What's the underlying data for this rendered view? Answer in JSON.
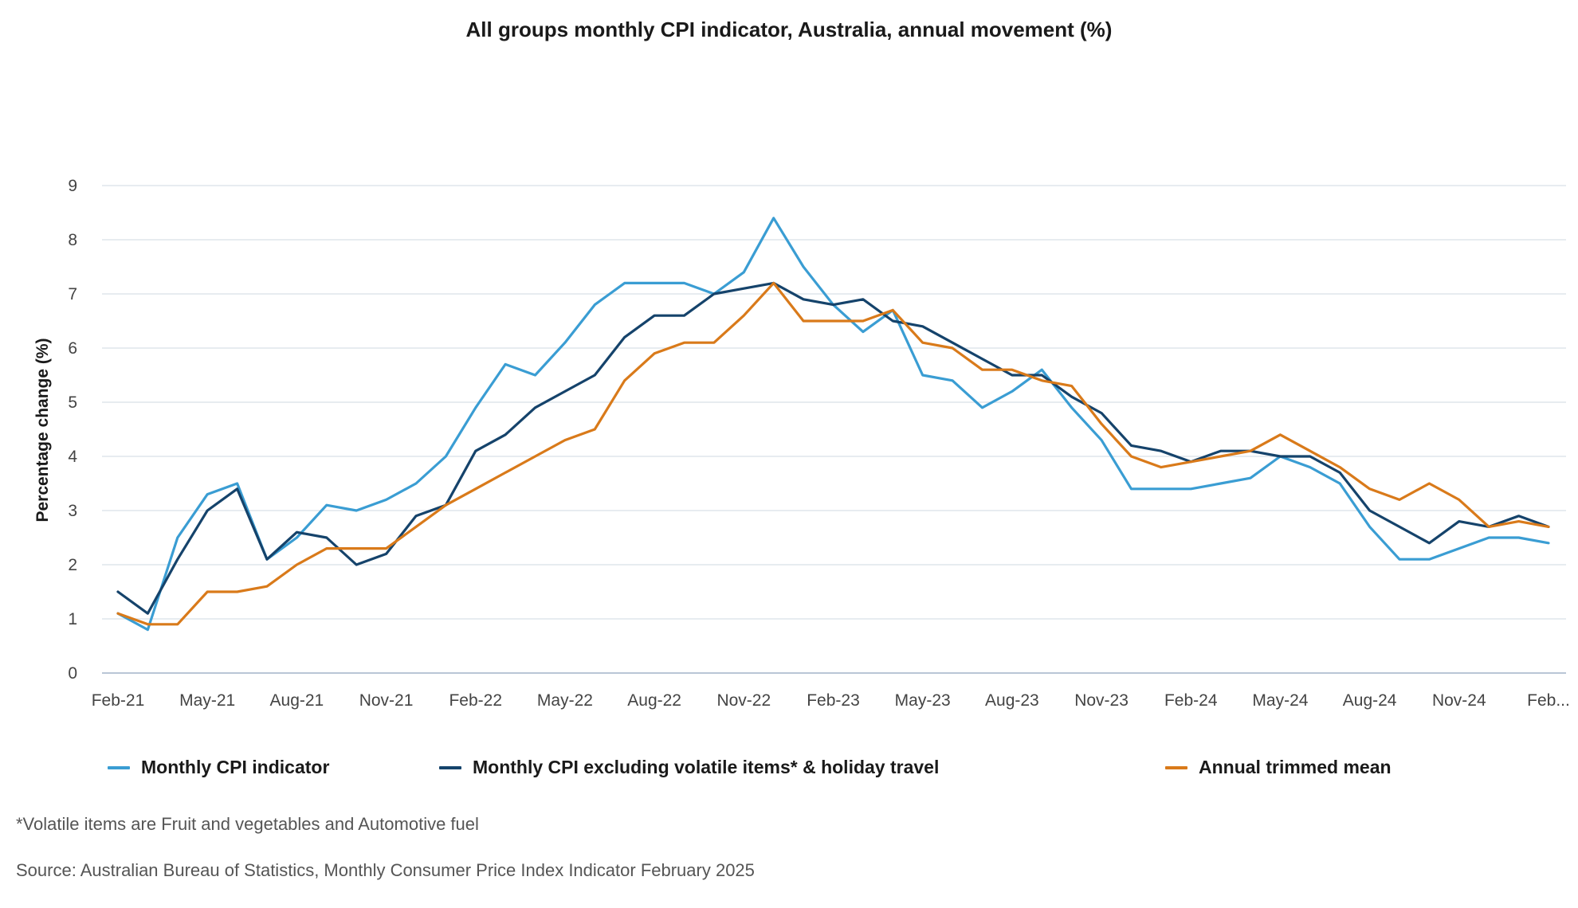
{
  "chart_data": {
    "type": "line",
    "title": "All groups monthly CPI indicator, Australia, annual movement (%)",
    "ylabel": "Percentage change (%)",
    "xlabel": "",
    "ylim": [
      0,
      9
    ],
    "yticks": [
      0,
      1,
      2,
      3,
      4,
      5,
      6,
      7,
      8,
      9
    ],
    "grid": "horizontal",
    "legend_position": "bottom",
    "x": [
      "Feb-21",
      "Mar-21",
      "Apr-21",
      "May-21",
      "Jun-21",
      "Jul-21",
      "Aug-21",
      "Sep-21",
      "Oct-21",
      "Nov-21",
      "Dec-21",
      "Jan-22",
      "Feb-22",
      "Mar-22",
      "Apr-22",
      "May-22",
      "Jun-22",
      "Jul-22",
      "Aug-22",
      "Sep-22",
      "Oct-22",
      "Nov-22",
      "Dec-22",
      "Jan-23",
      "Feb-23",
      "Mar-23",
      "Apr-23",
      "May-23",
      "Jun-23",
      "Jul-23",
      "Aug-23",
      "Sep-23",
      "Oct-23",
      "Nov-23",
      "Dec-23",
      "Jan-24",
      "Feb-24",
      "Mar-24",
      "Apr-24",
      "May-24",
      "Jun-24",
      "Jul-24",
      "Aug-24",
      "Sep-24",
      "Oct-24",
      "Nov-24",
      "Dec-24",
      "Jan-25",
      "Feb-25"
    ],
    "tick_labels": [
      "Feb-21",
      "May-21",
      "Aug-21",
      "Nov-21",
      "Feb-22",
      "May-22",
      "Aug-22",
      "Nov-22",
      "Feb-23",
      "May-23",
      "Aug-23",
      "Nov-23",
      "Feb-24",
      "May-24",
      "Aug-24",
      "Nov-24",
      "Feb..."
    ],
    "tick_every": 3,
    "series": [
      {
        "name": "Monthly CPI indicator",
        "color": "#3a9dd3",
        "values": [
          1.1,
          0.8,
          2.5,
          3.3,
          3.5,
          2.1,
          2.5,
          3.1,
          3.0,
          3.2,
          3.5,
          4.0,
          4.9,
          5.7,
          5.5,
          6.1,
          6.8,
          7.2,
          7.2,
          7.2,
          7.0,
          7.4,
          8.4,
          7.5,
          6.8,
          6.3,
          6.7,
          5.5,
          5.4,
          4.9,
          5.2,
          5.6,
          4.9,
          4.3,
          3.4,
          3.4,
          3.4,
          3.5,
          3.6,
          4.0,
          3.8,
          3.5,
          2.7,
          2.1,
          2.1,
          2.3,
          2.5,
          2.5,
          2.4
        ]
      },
      {
        "name": "Monthly CPI excluding volatile items* & holiday travel",
        "color": "#15436b",
        "values": [
          1.5,
          1.1,
          2.1,
          3.0,
          3.4,
          2.1,
          2.6,
          2.5,
          2.0,
          2.2,
          2.9,
          3.1,
          4.1,
          4.4,
          4.9,
          5.2,
          5.5,
          6.2,
          6.6,
          6.6,
          7.0,
          7.1,
          7.2,
          6.9,
          6.8,
          6.9,
          6.5,
          6.4,
          6.1,
          5.8,
          5.5,
          5.5,
          5.1,
          4.8,
          4.2,
          4.1,
          3.9,
          4.1,
          4.1,
          4.0,
          4.0,
          3.7,
          3.0,
          2.7,
          2.4,
          2.8,
          2.7,
          2.9,
          2.7
        ]
      },
      {
        "name": "Annual trimmed mean",
        "color": "#d97a1a",
        "values": [
          1.1,
          0.9,
          0.9,
          1.5,
          1.5,
          1.6,
          2.0,
          2.3,
          2.3,
          2.3,
          2.7,
          3.1,
          3.4,
          3.7,
          4.0,
          4.3,
          4.5,
          5.4,
          5.9,
          6.1,
          6.1,
          6.6,
          7.2,
          6.5,
          6.5,
          6.5,
          6.7,
          6.1,
          6.0,
          5.6,
          5.6,
          5.4,
          5.3,
          4.6,
          4.0,
          3.8,
          3.9,
          4.0,
          4.1,
          4.4,
          4.1,
          3.8,
          3.4,
          3.2,
          3.5,
          3.2,
          2.7,
          2.8,
          2.7
        ]
      }
    ]
  },
  "footnote": "*Volatile items are Fruit and vegetables and Automotive fuel",
  "source": "Source: Australian Bureau of Statistics, Monthly Consumer Price Index Indicator February 2025"
}
